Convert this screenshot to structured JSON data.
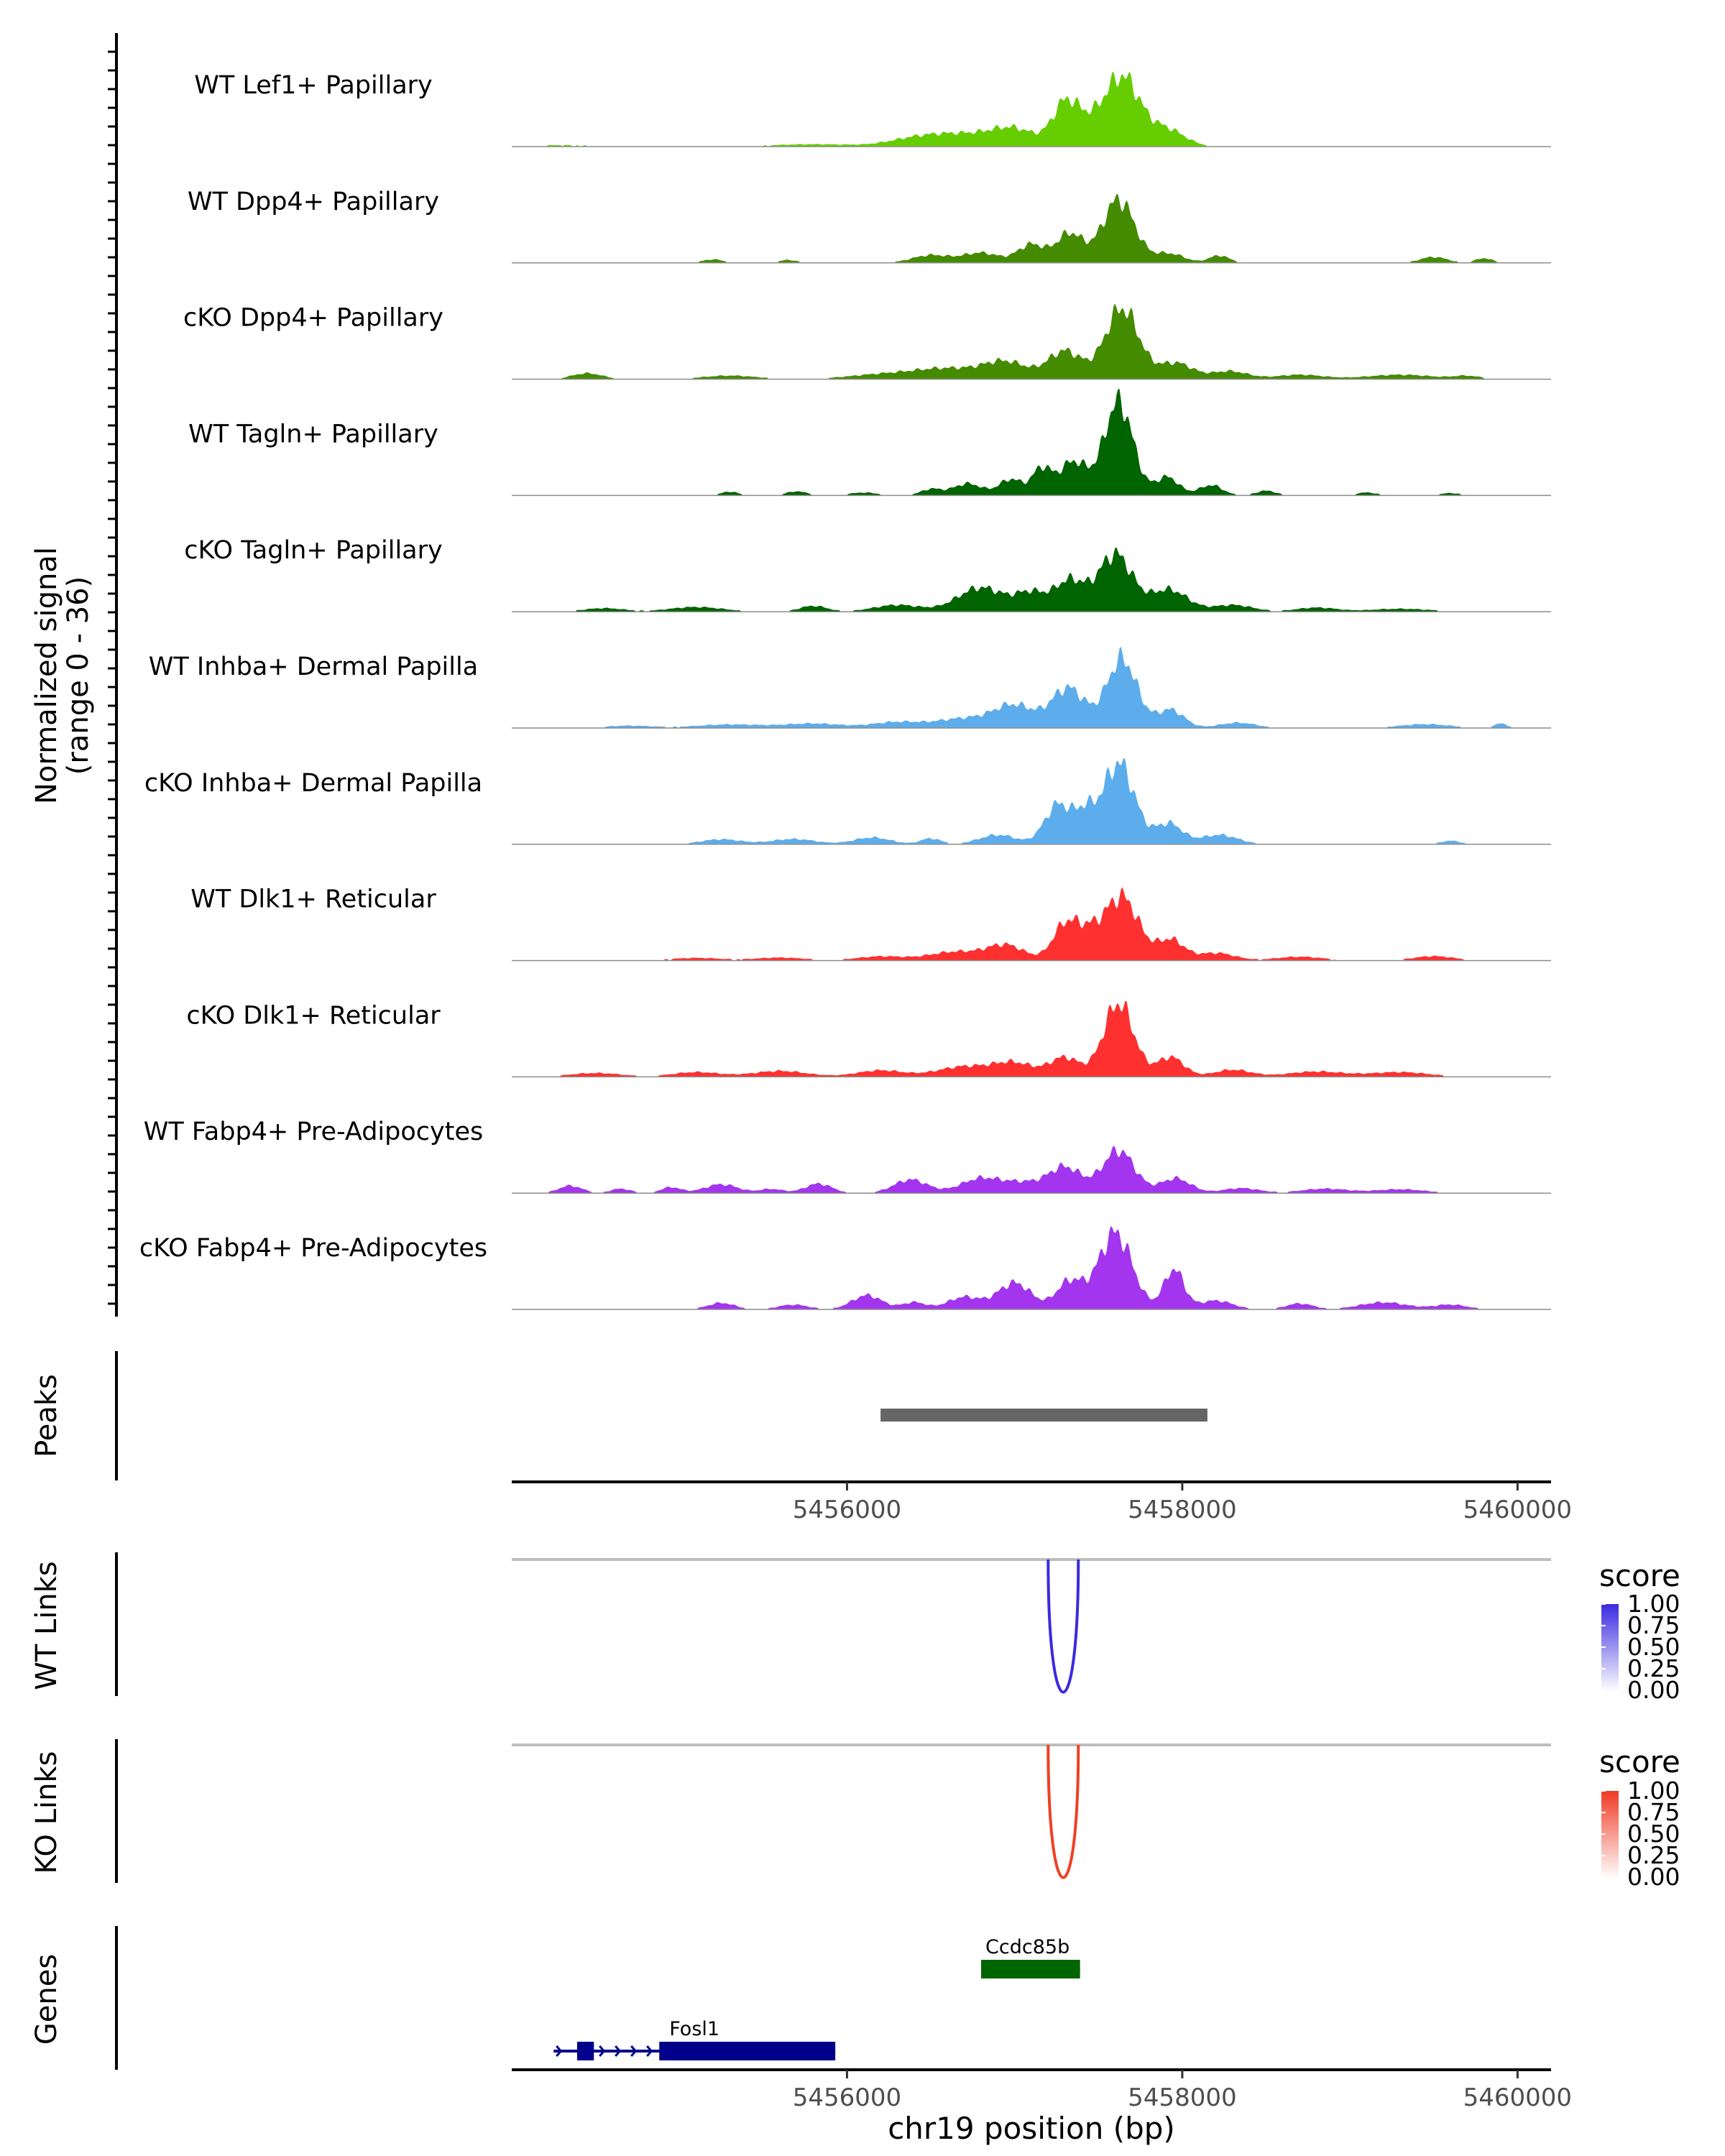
{
  "chart_data": {
    "type": "area",
    "title": "",
    "region": "chr19",
    "xlabel": "chr19 position (bp)",
    "xlim": [
      5454000,
      5460200
    ],
    "x_ticks": [
      5456000,
      5458000,
      5460000
    ],
    "x_tick_labels": [
      "5456000",
      "5458000",
      "5460000"
    ],
    "coverage": {
      "ylabel_line1": "Normalized signal",
      "ylabel_line2": "(range 0 - 36)",
      "ylim": [
        0,
        36
      ],
      "tracks": [
        {
          "name": "WT Lef1+ Papillary",
          "color": "#66CD00",
          "peaks": [
            [
              5454300,
              0.5,
              220
            ],
            [
              5455800,
              0.8,
              250
            ],
            [
              5456400,
              2.2,
              160
            ],
            [
              5456700,
              4.0,
              200
            ],
            [
              5457000,
              5.2,
              130
            ],
            [
              5457300,
              11.5,
              75
            ],
            [
              5457450,
              8,
              130
            ],
            [
              5457650,
              21,
              100
            ],
            [
              5457900,
              6,
              110
            ]
          ]
        },
        {
          "name": "WT Dpp4+ Papillary",
          "color": "#458B00",
          "peaks": [
            [
              5455200,
              1.2,
              60
            ],
            [
              5455650,
              1.0,
              50
            ],
            [
              5456500,
              2.6,
              110
            ],
            [
              5456800,
              3.4,
              110
            ],
            [
              5457100,
              6.2,
              80
            ],
            [
              5457330,
              10,
              80
            ],
            [
              5457620,
              21.5,
              95
            ],
            [
              5457920,
              3.2,
              90
            ],
            [
              5458220,
              2.5,
              60
            ],
            [
              5459500,
              2.0,
              80
            ],
            [
              5459800,
              1.6,
              50
            ]
          ]
        },
        {
          "name": "cKO Dpp4+ Papillary",
          "color": "#458B00",
          "peaks": [
            [
              5454450,
              2.0,
              90
            ],
            [
              5455300,
              1.2,
              160
            ],
            [
              5456200,
              1.5,
              200
            ],
            [
              5456600,
              3.5,
              200
            ],
            [
              5456950,
              5.5,
              130
            ],
            [
              5457300,
              9.5,
              100
            ],
            [
              5457640,
              24,
              100
            ],
            [
              5457960,
              5.5,
              100
            ],
            [
              5458280,
              2.7,
              110
            ],
            [
              5458700,
              1.5,
              140
            ],
            [
              5459300,
              1.5,
              200
            ],
            [
              5459700,
              1.0,
              80
            ]
          ]
        },
        {
          "name": "WT Tagln+ Papillary",
          "color": "#006400",
          "peaks": [
            [
              5455300,
              1.3,
              50
            ],
            [
              5455700,
              1.4,
              60
            ],
            [
              5456100,
              1.0,
              80
            ],
            [
              5456500,
              2.1,
              60
            ],
            [
              5456720,
              4.0,
              90
            ],
            [
              5456980,
              5.5,
              70
            ],
            [
              5457160,
              8.8,
              55
            ],
            [
              5457350,
              11.5,
              85
            ],
            [
              5457620,
              32,
              85
            ],
            [
              5457910,
              6.2,
              70
            ],
            [
              5458170,
              3.5,
              70
            ],
            [
              5458500,
              1.6,
              60
            ],
            [
              5459100,
              1.0,
              60
            ],
            [
              5459600,
              0.8,
              60
            ]
          ]
        },
        {
          "name": "cKO Tagln+ Papillary",
          "color": "#006400",
          "peaks": [
            [
              5454550,
              1.2,
              120
            ],
            [
              5455100,
              1.6,
              160
            ],
            [
              5455800,
              2.0,
              80
            ],
            [
              5456300,
              2.3,
              140
            ],
            [
              5456800,
              8.2,
              140
            ],
            [
              5457100,
              6.0,
              90
            ],
            [
              5457330,
              10.5,
              90
            ],
            [
              5457600,
              19.5,
              100
            ],
            [
              5457920,
              7.5,
              110
            ],
            [
              5458300,
              2.3,
              120
            ],
            [
              5458800,
              1.4,
              120
            ],
            [
              5459300,
              1.0,
              180
            ]
          ]
        },
        {
          "name": "WT Inhba+ Dermal Papilla",
          "color": "#5DADEC",
          "peaks": [
            [
              5454700,
              0.8,
              140
            ],
            [
              5455300,
              1.2,
              200
            ],
            [
              5455800,
              1.5,
              170
            ],
            [
              5456300,
              2.0,
              150
            ],
            [
              5456700,
              3.2,
              160
            ],
            [
              5457000,
              7.5,
              120
            ],
            [
              5457320,
              13.5,
              100
            ],
            [
              5457640,
              23.5,
              90
            ],
            [
              5457930,
              6.2,
              80
            ],
            [
              5458330,
              1.8,
              110
            ],
            [
              5459450,
              1.3,
              150
            ],
            [
              5459900,
              1.5,
              40
            ]
          ]
        },
        {
          "name": "cKO Inhba+ Dermal Papilla",
          "color": "#5DADEC",
          "peaks": [
            [
              5455250,
              1.7,
              120
            ],
            [
              5455680,
              1.8,
              130
            ],
            [
              5456150,
              2.3,
              110
            ],
            [
              5456500,
              2.0,
              60
            ],
            [
              5456900,
              3.2,
              110
            ],
            [
              5457260,
              13.5,
              80
            ],
            [
              5457420,
              9,
              60
            ],
            [
              5457620,
              27.5,
              95
            ],
            [
              5457920,
              7.0,
              80
            ],
            [
              5458220,
              3.2,
              110
            ],
            [
              5459600,
              1.2,
              60
            ]
          ]
        },
        {
          "name": "WT Dlk1+ Reticular",
          "color": "#FF3030",
          "peaks": [
            [
              5455100,
              0.9,
              150
            ],
            [
              5455600,
              1.0,
              150
            ],
            [
              5456200,
              1.4,
              140
            ],
            [
              5456650,
              3.0,
              160
            ],
            [
              5456950,
              5.0,
              110
            ],
            [
              5457300,
              11.5,
              75
            ],
            [
              5457440,
              8,
              80
            ],
            [
              5457640,
              21.5,
              100
            ],
            [
              5457930,
              7.0,
              80
            ],
            [
              5458200,
              2.6,
              110
            ],
            [
              5458700,
              1.3,
              140
            ],
            [
              5459500,
              1.5,
              120
            ]
          ]
        },
        {
          "name": "cKO Dlk1+ Reticular",
          "color": "#FF3030",
          "peaks": [
            [
              5454500,
              1.3,
              150
            ],
            [
              5455100,
              1.6,
              140
            ],
            [
              5455600,
              2.0,
              160
            ],
            [
              5456200,
              2.2,
              140
            ],
            [
              5456700,
              3.5,
              160
            ],
            [
              5457000,
              4.5,
              120
            ],
            [
              5457300,
              6.5,
              90
            ],
            [
              5457620,
              25,
              90
            ],
            [
              5457930,
              6.7,
              80
            ],
            [
              5458300,
              2.4,
              110
            ],
            [
              5458800,
              1.8,
              170
            ],
            [
              5459300,
              1.6,
              170
            ]
          ]
        },
        {
          "name": "WT Fabp4+ Pre-Adipocytes",
          "color": "#A335EE",
          "peaks": [
            [
              5454350,
              2.5,
              70
            ],
            [
              5454650,
              1.5,
              60
            ],
            [
              5454950,
              2.0,
              60
            ],
            [
              5455250,
              3.0,
              100
            ],
            [
              5455550,
              1.4,
              70
            ],
            [
              5455830,
              3.2,
              80
            ],
            [
              5456380,
              4.6,
              100
            ],
            [
              5456800,
              5.0,
              120
            ],
            [
              5457050,
              3.2,
              110
            ],
            [
              5457300,
              8.8,
              100
            ],
            [
              5457620,
              14.5,
              95
            ],
            [
              5457960,
              5.0,
              90
            ],
            [
              5458350,
              1.7,
              110
            ],
            [
              5458850,
              1.5,
              140
            ],
            [
              5459300,
              1.3,
              150
            ]
          ]
        },
        {
          "name": "cKO Fabp4+ Pre-Adipocytes",
          "color": "#A335EE",
          "peaks": [
            [
              5455250,
              2.2,
              80
            ],
            [
              5455680,
              1.6,
              90
            ],
            [
              5456120,
              4.8,
              90
            ],
            [
              5456400,
              2.4,
              70
            ],
            [
              5456700,
              4.2,
              100
            ],
            [
              5457000,
              9.0,
              100
            ],
            [
              5457330,
              9.5,
              80
            ],
            [
              5457600,
              26,
              100
            ],
            [
              5457950,
              13.5,
              60
            ],
            [
              5458200,
              3.0,
              100
            ],
            [
              5458700,
              2.0,
              80
            ],
            [
              5459200,
              2.4,
              140
            ],
            [
              5459600,
              1.6,
              100
            ]
          ]
        }
      ]
    },
    "peaks_track": {
      "label": "Peaks",
      "ranges": [
        [
          5456200,
          5458150
        ]
      ],
      "color": "#666666"
    },
    "links_tracks": [
      {
        "label": "WT Links",
        "link": [
          5457200,
          5457380
        ],
        "score": 1.0,
        "color": "#3B2AE0",
        "legend_title": "score",
        "legend_ticks": [
          "1.00",
          "0.75",
          "0.50",
          "0.25",
          "0.00"
        ],
        "legend_top_color": "#3B2AE0"
      },
      {
        "label": "KO Links",
        "link": [
          5457200,
          5457380
        ],
        "score": 1.0,
        "color": "#EE4122",
        "legend_title": "score",
        "legend_ticks": [
          "1.00",
          "0.75",
          "0.50",
          "0.25",
          "0.00"
        ],
        "legend_top_color": "#F03A24"
      }
    ],
    "genes_track": {
      "label": "Genes",
      "genes": [
        {
          "name": "Ccdc85b",
          "start": 5456800,
          "end": 5457390,
          "color": "#006400",
          "strand": "",
          "exons": [
            [
              5456800,
              5457390
            ]
          ]
        },
        {
          "name": "Fosl1",
          "start": 5454250,
          "end": 5455930,
          "color": "#00008B",
          "strand": "+",
          "exons": [
            [
              5454390,
              5454490
            ],
            [
              5454880,
              5455930
            ]
          ]
        }
      ]
    }
  }
}
